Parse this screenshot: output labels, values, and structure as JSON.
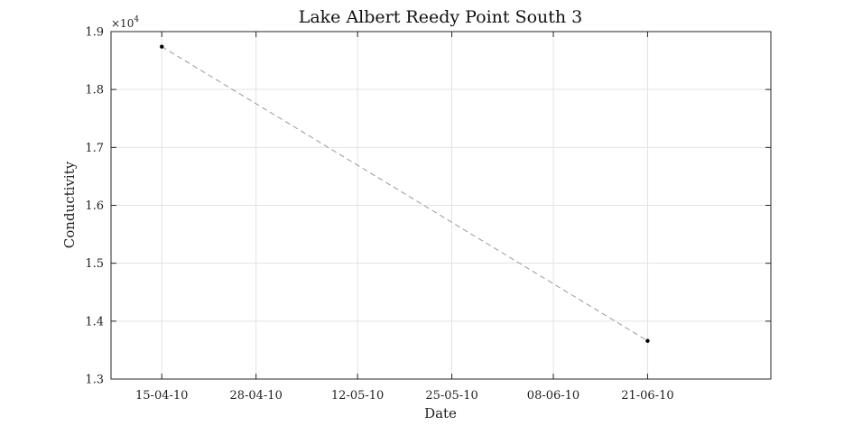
{
  "chart_data": {
    "type": "line",
    "title": "Lake Albert Reedy Point South 3",
    "xlabel": "Date",
    "ylabel": "Conductivity",
    "y_multiplier": {
      "base": "×10",
      "exponent": "4"
    },
    "x_tick_labels": [
      "15-04-10",
      "28-04-10",
      "12-05-10",
      "25-05-10",
      "08-06-10",
      "21-06-10"
    ],
    "y_tick_labels": [
      "1.3",
      "1.4",
      "1.5",
      "1.6",
      "1.7",
      "1.8",
      "1.9"
    ],
    "x_tick_dates": [
      "2010-04-15",
      "2010-04-28",
      "2010-05-12",
      "2010-05-25",
      "2010-06-08",
      "2010-06-21"
    ],
    "y_ticks": [
      1.3,
      1.4,
      1.5,
      1.6,
      1.7,
      1.8,
      1.9
    ],
    "xlim": [
      "2010-04-08",
      "2010-07-08"
    ],
    "ylim": [
      1.3,
      1.9
    ],
    "grid": true,
    "series": [
      {
        "line_style": "dashed",
        "line_color": "#9a9a9a",
        "marker_color": "#000000",
        "x": [
          "2010-04-15",
          "2010-06-21"
        ],
        "y": [
          1.874,
          1.366
        ]
      }
    ]
  }
}
